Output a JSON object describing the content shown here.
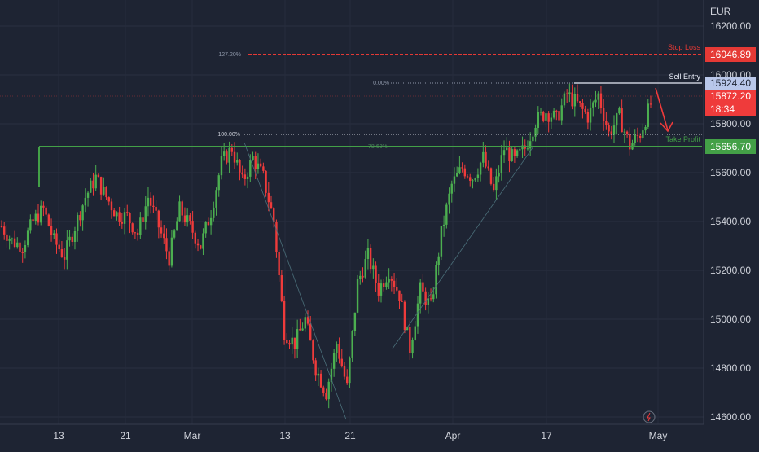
{
  "currency": "EUR",
  "colors": {
    "background": "#1e2433",
    "bull": "#4caf50",
    "bear": "#ef3b3b",
    "stop_loss": "#e53935",
    "sell_entry": "#b9c7ea",
    "take_profit": "#43a047",
    "fib": "#c8ccd6",
    "axis_text": "#d1d4dc"
  },
  "levels": {
    "stop_loss": {
      "label": "Stop Loss",
      "price": "16046.89",
      "fib": "127.20%"
    },
    "sell_entry": {
      "label": "Sell Entry",
      "price": "15924.40",
      "fib": "0.00%"
    },
    "current": {
      "price": "15872.20",
      "countdown": "18:34"
    },
    "take_profit": {
      "label": "Take Profit",
      "price": "15656.70",
      "fib": "100.00%",
      "fib_secondary": "78.60%"
    }
  },
  "chart_data": {
    "type": "candlestick",
    "instrument_currency": "EUR",
    "y_ticks": [
      "16200.00",
      "16000.00",
      "15800.00",
      "15600.00",
      "15400.00",
      "15200.00",
      "15000.00",
      "14800.00",
      "14600.00"
    ],
    "ylim": [
      14490,
      16230
    ],
    "x_ticks": [
      "13",
      "21",
      "Mar",
      "13",
      "21",
      "Apr",
      "17",
      "May"
    ],
    "horizontal_lines": [
      {
        "name": "Stop Loss",
        "price": 16046.89
      },
      {
        "name": "Sell Entry",
        "price": 15924.4
      },
      {
        "name": "Take Profit",
        "price": 15656.7
      }
    ],
    "fibonacci_levels": [
      "127.20%",
      "0.00%",
      "100.00%",
      "78.60%"
    ],
    "approx_close_path": [
      [
        0,
        15380
      ],
      [
        4,
        15320
      ],
      [
        8,
        15300
      ],
      [
        12,
        15400
      ],
      [
        16,
        15450
      ],
      [
        20,
        15320
      ],
      [
        24,
        15260
      ],
      [
        28,
        15380
      ],
      [
        32,
        15500
      ],
      [
        36,
        15580
      ],
      [
        40,
        15500
      ],
      [
        44,
        15430
      ],
      [
        48,
        15420
      ],
      [
        52,
        15350
      ],
      [
        56,
        15500
      ],
      [
        60,
        15380
      ],
      [
        64,
        15250
      ],
      [
        68,
        15450
      ],
      [
        72,
        15380
      ],
      [
        76,
        15300
      ],
      [
        80,
        15440
      ],
      [
        84,
        15640
      ],
      [
        88,
        15700
      ],
      [
        92,
        15560
      ],
      [
        96,
        15660
      ],
      [
        100,
        15580
      ],
      [
        104,
        15400
      ],
      [
        108,
        14950
      ],
      [
        112,
        14900
      ],
      [
        116,
        15000
      ],
      [
        120,
        14800
      ],
      [
        124,
        14700
      ],
      [
        128,
        14900
      ],
      [
        132,
        14720
      ],
      [
        136,
        15150
      ],
      [
        140,
        15260
      ],
      [
        144,
        15120
      ],
      [
        148,
        15200
      ],
      [
        152,
        15100
      ],
      [
        156,
        14880
      ],
      [
        160,
        15120
      ],
      [
        164,
        15050
      ],
      [
        168,
        15350
      ],
      [
        172,
        15550
      ],
      [
        176,
        15620
      ],
      [
        180,
        15580
      ],
      [
        184,
        15660
      ],
      [
        188,
        15520
      ],
      [
        192,
        15700
      ],
      [
        196,
        15650
      ],
      [
        200,
        15700
      ],
      [
        204,
        15810
      ],
      [
        208,
        15850
      ],
      [
        212,
        15820
      ],
      [
        216,
        15920
      ],
      [
        220,
        15880
      ],
      [
        224,
        15830
      ],
      [
        228,
        15920
      ],
      [
        232,
        15760
      ],
      [
        236,
        15830
      ],
      [
        240,
        15710
      ],
      [
        244,
        15760
      ],
      [
        248,
        15880
      ]
    ]
  }
}
